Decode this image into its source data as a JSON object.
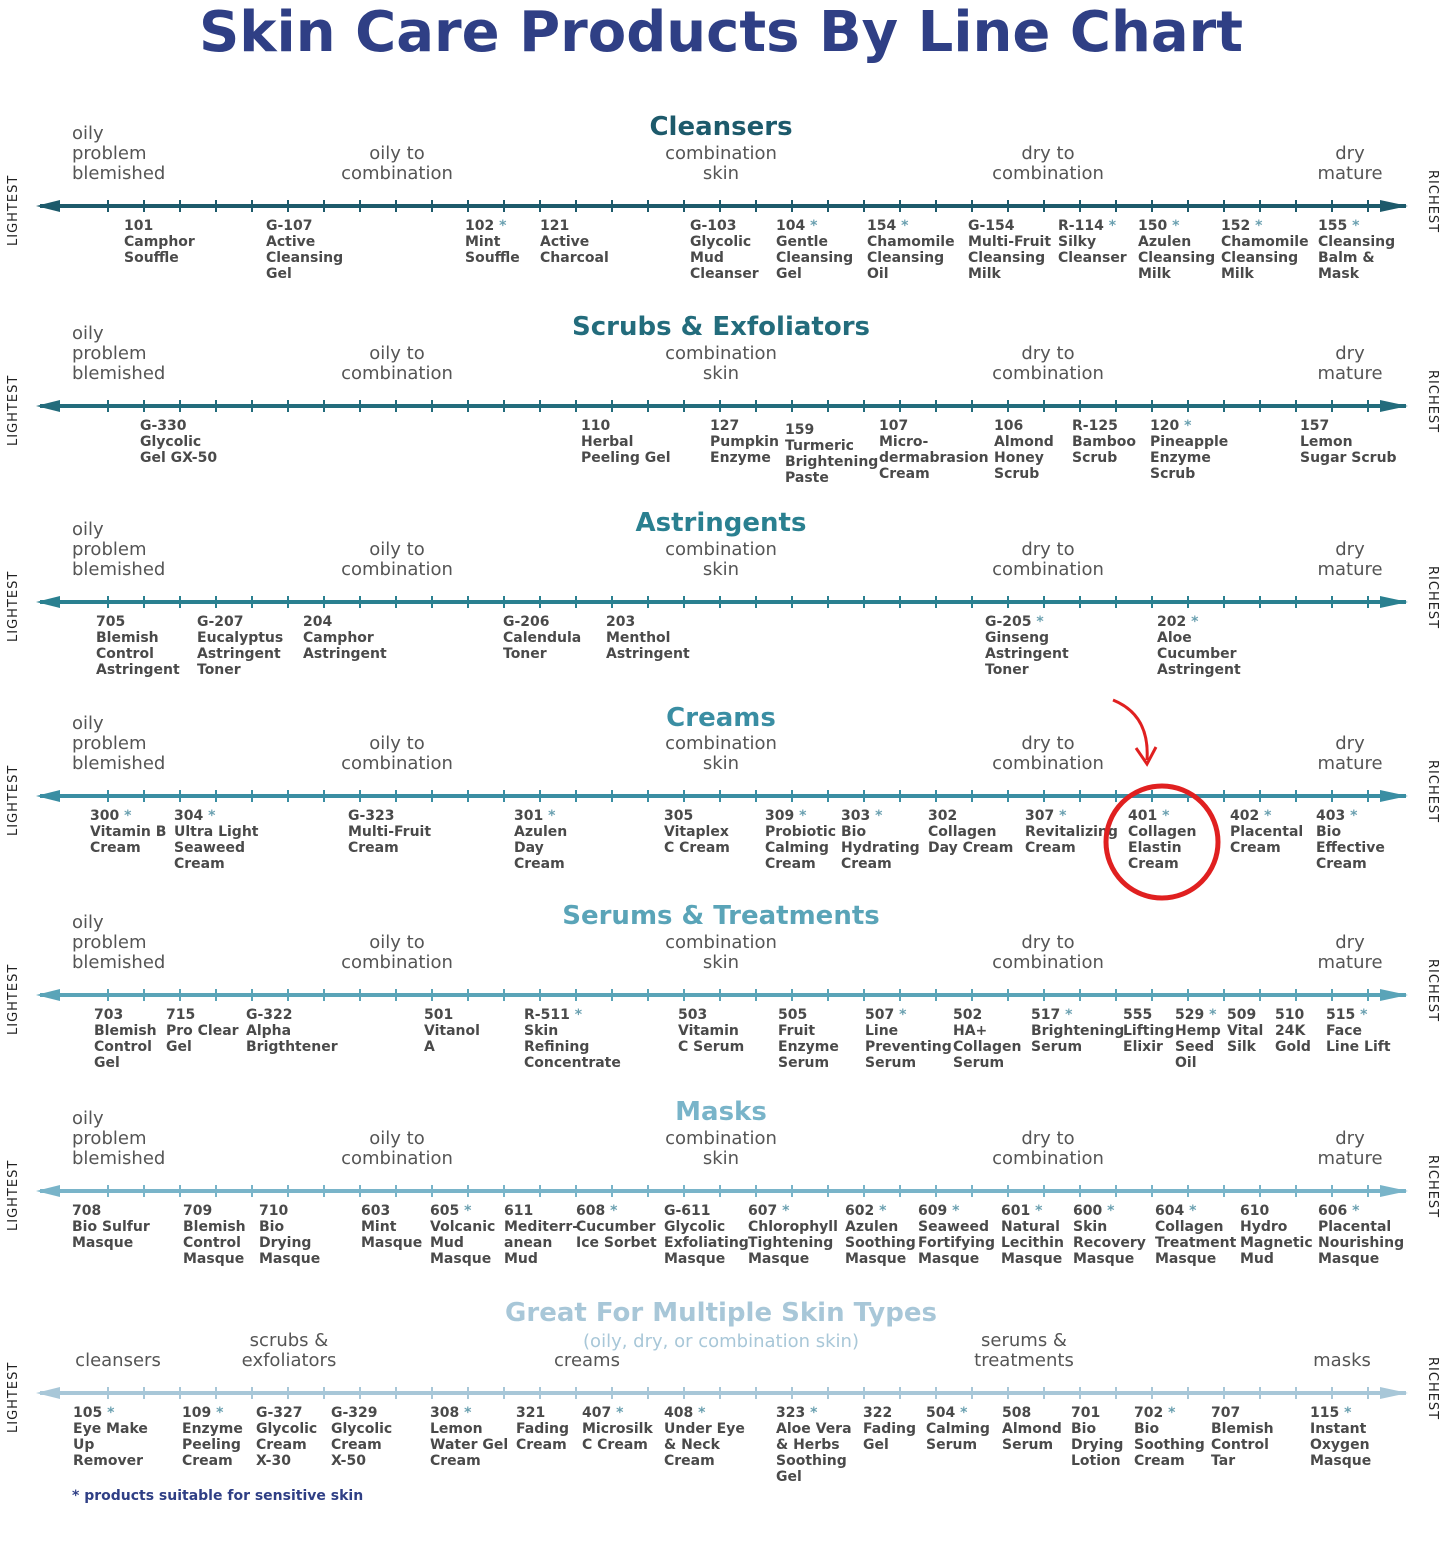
{
  "title": "Skin Care Products By Line Chart",
  "side_labels": {
    "left": "LIGHTEST",
    "right": "RICHEST"
  },
  "zones": [
    "oily\nproblem\nblemished",
    "oily to\ncombination",
    "combination\nskin",
    "dry to\ncombination",
    "dry\nmature"
  ],
  "sections": [
    {
      "title": "Cleansers",
      "color": "#1d5a6b",
      "products": [
        {
          "code": "101",
          "star": false,
          "name": "Camphor\nSouffle"
        },
        {
          "code": "G-107",
          "star": false,
          "name": "Active\nCleansing\nGel"
        },
        {
          "code": "102",
          "star": true,
          "name": "Mint\nSouffle"
        },
        {
          "code": "121",
          "star": false,
          "name": "Active\nCharcoal"
        },
        {
          "code": "G-103",
          "star": false,
          "name": "Glycolic\nMud\nCleanser"
        },
        {
          "code": "104",
          "star": true,
          "name": "Gentle\nCleansing\nGel"
        },
        {
          "code": "154",
          "star": true,
          "name": "Chamomile\nCleansing\nOil"
        },
        {
          "code": "G-154",
          "star": false,
          "name": "Multi-Fruit\nCleansing\nMilk"
        },
        {
          "code": "R-114",
          "star": true,
          "name": "Silky\nCleanser"
        },
        {
          "code": "150",
          "star": true,
          "name": "Azulen\nCleansing\nMilk"
        },
        {
          "code": "152",
          "star": true,
          "name": "Chamomile\nCleansing\nMilk"
        },
        {
          "code": "155",
          "star": true,
          "name": "Cleansing\nBalm &\nMask"
        }
      ]
    },
    {
      "title": "Scrubs & Exfoliators",
      "color": "#236c7c",
      "products": [
        {
          "code": "G-330",
          "star": false,
          "name": "Glycolic\nGel GX-50"
        },
        {
          "code": "110",
          "star": false,
          "name": "Herbal\nPeeling Gel"
        },
        {
          "code": "127",
          "star": false,
          "name": "Pumpkin\nEnzyme"
        },
        {
          "code": "159",
          "star": false,
          "name": "Turmeric\nBrightening\nPaste"
        },
        {
          "code": "107",
          "star": false,
          "name": "Micro-\ndermabrasion\nCream"
        },
        {
          "code": "106",
          "star": false,
          "name": "Almond\nHoney\nScrub"
        },
        {
          "code": "R-125",
          "star": false,
          "name": "Bamboo\nScrub"
        },
        {
          "code": "120",
          "star": true,
          "name": "Pineapple\nEnzyme\nScrub"
        },
        {
          "code": "157",
          "star": false,
          "name": "Lemon\nSugar Scrub"
        }
      ]
    },
    {
      "title": "Astringents",
      "color": "#2a8090",
      "products": [
        {
          "code": "705",
          "star": false,
          "name": "Blemish\nControl\nAstringent"
        },
        {
          "code": "G-207",
          "star": false,
          "name": "Eucalyptus\nAstringent\nToner"
        },
        {
          "code": "204",
          "star": false,
          "name": "Camphor\nAstringent"
        },
        {
          "code": "G-206",
          "star": false,
          "name": "Calendula\nToner"
        },
        {
          "code": "203",
          "star": false,
          "name": "Menthol\nAstringent"
        },
        {
          "code": "G-205",
          "star": true,
          "name": "Ginseng\nAstringent\nToner"
        },
        {
          "code": "202",
          "star": true,
          "name": "Aloe\nCucumber\nAstringent"
        }
      ]
    },
    {
      "title": "Creams",
      "color": "#3a8ea3",
      "products": [
        {
          "code": "300",
          "star": true,
          "name": "Vitamin B\nCream"
        },
        {
          "code": "304",
          "star": true,
          "name": "Ultra Light\nSeaweed\nCream"
        },
        {
          "code": "G-323",
          "star": false,
          "name": "Multi-Fruit\nCream"
        },
        {
          "code": "301",
          "star": true,
          "name": "Azulen\nDay\nCream"
        },
        {
          "code": "305",
          "star": false,
          "name": "Vitaplex\nC Cream"
        },
        {
          "code": "309",
          "star": true,
          "name": "Probiotic\nCalming\nCream"
        },
        {
          "code": "303",
          "star": true,
          "name": "Bio\nHydrating\nCream"
        },
        {
          "code": "302",
          "star": false,
          "name": "Collagen\nDay Cream"
        },
        {
          "code": "307",
          "star": true,
          "name": "Revitalizing\nCream"
        },
        {
          "code": "401",
          "star": true,
          "name": "Collagen\nElastin\nCream"
        },
        {
          "code": "402",
          "star": true,
          "name": "Placental\nCream"
        },
        {
          "code": "403",
          "star": true,
          "name": "Bio\nEffective\nCream"
        }
      ]
    },
    {
      "title": "Serums & Treatments",
      "color": "#5aa4b8",
      "products": [
        {
          "code": "703",
          "star": false,
          "name": "Blemish\nControl\nGel"
        },
        {
          "code": "715",
          "star": false,
          "name": "Pro Clear\nGel"
        },
        {
          "code": "G-322",
          "star": false,
          "name": "Alpha\nBrigthtener"
        },
        {
          "code": "501",
          "star": false,
          "name": "Vitanol\nA"
        },
        {
          "code": "R-511",
          "star": true,
          "name": "Skin\nRefining\nConcentrate"
        },
        {
          "code": "503",
          "star": false,
          "name": "Vitamin\nC Serum"
        },
        {
          "code": "505",
          "star": false,
          "name": "Fruit\nEnzyme\nSerum"
        },
        {
          "code": "507",
          "star": true,
          "name": "Line\nPreventing\nSerum"
        },
        {
          "code": "502",
          "star": false,
          "name": "HA+\nCollagen\nSerum"
        },
        {
          "code": "517",
          "star": true,
          "name": "Brightening\nSerum"
        },
        {
          "code": "555",
          "star": false,
          "name": "Lifting\nElixir"
        },
        {
          "code": "529",
          "star": true,
          "name": "Hemp\nSeed\nOil"
        },
        {
          "code": "509",
          "star": false,
          "name": "Vital\nSilk"
        },
        {
          "code": "510",
          "star": false,
          "name": "24K\nGold"
        },
        {
          "code": "515",
          "star": true,
          "name": "Face\nLine Lift"
        }
      ]
    },
    {
      "title": "Masks",
      "color": "#79b4c9",
      "products": [
        {
          "code": "708",
          "star": false,
          "name": "Bio Sulfur\nMasque"
        },
        {
          "code": "709",
          "star": false,
          "name": "Blemish\nControl\nMasque"
        },
        {
          "code": "710",
          "star": false,
          "name": "Bio\nDrying\nMasque"
        },
        {
          "code": "603",
          "star": false,
          "name": "Mint\nMasque"
        },
        {
          "code": "605",
          "star": true,
          "name": "Volcanic\nMud\nMasque"
        },
        {
          "code": "611",
          "star": false,
          "name": "Mediterr-\nanean\nMud"
        },
        {
          "code": "608",
          "star": true,
          "name": "Cucumber\nIce Sorbet"
        },
        {
          "code": "G-611",
          "star": false,
          "name": "Glycolic\nExfoliating\nMasque"
        },
        {
          "code": "607",
          "star": true,
          "name": "Chlorophyll\nTightening\nMasque"
        },
        {
          "code": "602",
          "star": true,
          "name": "Azulen\nSoothing\nMasque"
        },
        {
          "code": "609",
          "star": true,
          "name": "Seaweed\nFortifying\nMasque"
        },
        {
          "code": "601",
          "star": true,
          "name": "Natural\nLecithin\nMasque"
        },
        {
          "code": "600",
          "star": true,
          "name": "Skin\nRecovery\nMasque"
        },
        {
          "code": "604",
          "star": true,
          "name": "Collagen\nTreatment\nMasque"
        },
        {
          "code": "610",
          "star": false,
          "name": "Hydro\nMagnetic\nMud"
        },
        {
          "code": "606",
          "star": true,
          "name": "Placental\nNourishing\nMasque"
        }
      ]
    }
  ],
  "multi": {
    "title": "Great For Multiple Skin Types",
    "subtitle": "(oily, dry, or combination skin)",
    "color": "#a8c7d8",
    "zones": [
      "cleansers",
      "scrubs &\nexfoliators",
      "creams",
      "serums &\ntreatments",
      "masks"
    ],
    "products": [
      {
        "code": "105",
        "star": true,
        "name": "Eye Make\nUp\nRemover"
      },
      {
        "code": "109",
        "star": true,
        "name": "Enzyme\nPeeling\nCream"
      },
      {
        "code": "G-327",
        "star": false,
        "name": "Glycolic\nCream\nX-30"
      },
      {
        "code": "G-329",
        "star": false,
        "name": "Glycolic\nCream\nX-50"
      },
      {
        "code": "308",
        "star": true,
        "name": "Lemon\nWater Gel\nCream"
      },
      {
        "code": "321",
        "star": false,
        "name": "Fading\nCream"
      },
      {
        "code": "407",
        "star": true,
        "name": "Microsilk\nC Cream"
      },
      {
        "code": "408",
        "star": true,
        "name": "Under Eye\n& Neck\nCream"
      },
      {
        "code": "323",
        "star": true,
        "name": "Aloe Vera\n& Herbs\nSoothing\nGel"
      },
      {
        "code": "322",
        "star": false,
        "name": "Fading\nGel"
      },
      {
        "code": "504",
        "star": true,
        "name": "Calming\nSerum"
      },
      {
        "code": "508",
        "star": false,
        "name": "Almond\nSerum"
      },
      {
        "code": "701",
        "star": false,
        "name": "Bio\nDrying\nLotion"
      },
      {
        "code": "702",
        "star": true,
        "name": "Bio\nSoothing\nCream"
      },
      {
        "code": "707",
        "star": false,
        "name": "Blemish\nControl\nTar"
      },
      {
        "code": "115",
        "star": true,
        "name": "Instant\nOxygen\nMasque"
      }
    ]
  },
  "footnote": "* products suitable for sensitive skin",
  "highlight": {
    "product": "401",
    "color": "#e02020"
  }
}
